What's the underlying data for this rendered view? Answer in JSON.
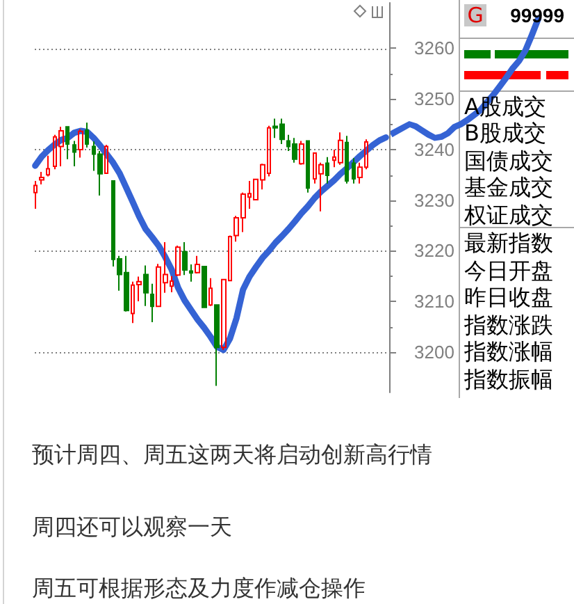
{
  "chart_data": [
    {
      "type": "candlestick",
      "categories": [
        null,
        null,
        null,
        null,
        null,
        null,
        null,
        null,
        null,
        null,
        null,
        null,
        null,
        null,
        null,
        null,
        null,
        null,
        null,
        null,
        null,
        null,
        null,
        null,
        null,
        null,
        null,
        null,
        null,
        null,
        null,
        null,
        null,
        null,
        null,
        null,
        null,
        null,
        null,
        null,
        null,
        null,
        null,
        null,
        null,
        null,
        null,
        null,
        null,
        null,
        null,
        null,
        null,
        null,
        null
      ],
      "ohlc": [
        [
          3231.5,
          3233.8,
          3228.3,
          3232.9
        ],
        [
          3234.0,
          3235.6,
          3233.1,
          3234.5
        ],
        [
          3235.0,
          3238.8,
          3234.7,
          3236.2
        ],
        [
          3236.7,
          3242.9,
          3236.1,
          3242.5
        ],
        [
          3240.6,
          3244.5,
          3236.7,
          3243.7
        ],
        [
          3244.5,
          3244.5,
          3238.1,
          3241.1
        ],
        [
          3240.9,
          3241.7,
          3236.7,
          3239.5
        ],
        [
          3240.0,
          3244.0,
          3238.4,
          3243.6
        ],
        [
          3243.8,
          3245.3,
          3240.4,
          3241.1
        ],
        [
          3240.6,
          3241.6,
          3235.8,
          3239.1
        ],
        [
          3239.1,
          3239.7,
          3230.9,
          3235.2
        ],
        [
          3235.3,
          3240.9,
          3235.2,
          3240.6
        ],
        [
          3233.8,
          3233.8,
          3216.9,
          3218.3
        ],
        [
          3218.4,
          3219.0,
          3212.1,
          3215.3
        ],
        [
          3215.7,
          3219.0,
          3208.0,
          3208.2
        ],
        [
          3207.6,
          3213.9,
          3205.7,
          3213.2
        ],
        [
          3213.3,
          3214.9,
          3210.0,
          3213.9
        ],
        [
          3215.3,
          3217.1,
          3209.1,
          3211.7
        ],
        [
          3211.4,
          3213.5,
          3205.9,
          3209.0
        ],
        [
          3209.0,
          3217.4,
          3209.0,
          3216.8
        ],
        [
          3213.7,
          3221.7,
          3211.7,
          3215.3
        ],
        [
          3213.0,
          3215.0,
          3211.8,
          3214.0
        ],
        [
          3215.2,
          3221.0,
          3215.0,
          3220.7
        ],
        [
          3219.8,
          3221.7,
          3215.2,
          3216.2
        ],
        [
          3216.0,
          3217.3,
          3213.9,
          3215.6
        ],
        [
          3215.7,
          3219.0,
          3215.5,
          3217.3
        ],
        [
          3216.9,
          3216.9,
          3208.7,
          3208.8
        ],
        [
          3209.3,
          3214.6,
          3209.1,
          3212.6
        ],
        [
          3209.3,
          3209.3,
          3193.3,
          3200.9
        ],
        [
          3200.9,
          3214.3,
          3200.4,
          3214.3
        ],
        [
          3214.1,
          3223.0,
          3214.1,
          3222.8
        ],
        [
          3223.0,
          3226.9,
          3221.8,
          3226.5
        ],
        [
          3226.5,
          3231.5,
          3223.7,
          3231.2
        ],
        [
          3230.6,
          3233.8,
          3228.3,
          3231.3
        ],
        [
          3230.1,
          3234.2,
          3230.1,
          3234.1
        ],
        [
          3234.0,
          3237.2,
          3232.1,
          3237.0
        ],
        [
          3235.3,
          3244.7,
          3234.7,
          3244.3
        ],
        [
          3244.6,
          3246.1,
          3242.3,
          3244.3
        ],
        [
          3245.0,
          3246.1,
          3241.1,
          3242.0
        ],
        [
          3241.7,
          3242.9,
          3239.7,
          3240.6
        ],
        [
          3241.1,
          3242.3,
          3237.4,
          3238.1
        ],
        [
          3237.2,
          3241.7,
          3237.0,
          3241.1
        ],
        [
          3241.7,
          3241.7,
          3231.5,
          3232.4
        ],
        [
          3234.2,
          3239.4,
          3233.3,
          3239.3
        ],
        [
          3235.2,
          3237.4,
          3227.8,
          3237.0
        ],
        [
          3237.3,
          3238.5,
          3233.3,
          3234.9
        ],
        [
          3237.9,
          3240.0,
          3236.5,
          3238.5
        ],
        [
          3237.4,
          3243.4,
          3237.0,
          3241.8
        ],
        [
          3241.4,
          3242.7,
          3233.3,
          3233.8
        ],
        [
          3237.3,
          3238.3,
          3233.3,
          3234.2
        ],
        [
          3234.5,
          3237.4,
          3233.3,
          3236.5
        ],
        [
          3236.5,
          3242.0,
          3236.1,
          3241.5
        ],
        null,
        null,
        null
      ],
      "colors": [
        "#ff0000",
        "#ff0000",
        "#ff0000",
        "#ff0000",
        "#ff0000",
        "#008000",
        "#008000",
        "#ff0000",
        "#008000",
        "#008000",
        "#008000",
        "#ff0000",
        "#008000",
        "#008000",
        "#008000",
        "#ff0000",
        "#ff0000",
        "#008000",
        "#008000",
        "#ff0000",
        "#ff0000",
        "#ff0000",
        "#ff0000",
        "#008000",
        "#008000",
        "#ff0000",
        "#008000",
        "#ff0000",
        "#008000",
        "#ff0000",
        "#ff0000",
        "#ff0000",
        "#ff0000",
        "#ff0000",
        "#ff0000",
        "#ff0000",
        "#ff0000",
        "#008000",
        "#008000",
        "#008000",
        "#008000",
        "#ff0000",
        "#008000",
        "#ff0000",
        "#ff0000",
        "#008000",
        "#ff0000",
        "#ff0000",
        "#008000",
        "#008000",
        "#ff0000",
        "#ff0000",
        null,
        null,
        null
      ],
      "series": [
        {
          "type": "line",
          "color": "#3563d4",
          "values": [
            3236.8,
            3238.6,
            3239.9,
            3241.0,
            3241.9,
            3242.3,
            3243.3,
            3243.7,
            3243.5,
            3242.3,
            3240.8,
            3239.1,
            3237.4,
            3235.3,
            3232.5,
            3229.7,
            3226.8,
            3224.3,
            3222.7,
            3221.0,
            3218.8,
            3216.3,
            3212.7,
            3210.2,
            3208.3,
            3206.4,
            3204.8,
            3203.0,
            3201.0,
            3200.4,
            3202.7,
            3206.7,
            3212.3,
            3214.9,
            3216.8,
            3218.6,
            3220.0,
            3221.6,
            3222.9,
            3224.3,
            3225.8,
            3227.4,
            3228.8,
            3230.4,
            3231.7,
            3232.8,
            3233.9,
            3235.2,
            3236.3,
            3237.5,
            3238.7,
            3239.8,
            3240.9,
            3241.8,
            3242.4
          ]
        }
      ],
      "ylim": [
        3192,
        3269
      ],
      "yticks": [
        3200,
        {
          "value": 3205,
          "label": null
        },
        3210,
        {
          "value": 3215,
          "label": null
        },
        3220,
        {
          "value": 3225,
          "label": null
        },
        3230,
        {
          "value": 3235,
          "label": null
        },
        3240,
        {
          "value": 3245,
          "label": null
        },
        3250,
        {
          "value": 3255,
          "label": null
        },
        3260
      ],
      "grid": "y",
      "tick_labels": "y",
      "annotations": [
        "预计周四、周五这两天将启动创新高行情",
        "周四还可以观察一天",
        "周五可根据形态及力度作减仓操作"
      ]
    },
    {
      "type": "other",
      "annotations": [
        "G",
        "99999",
        "A股成交",
        "B股成交",
        "国债成交",
        "基金成交",
        "权证成交",
        "最新指数",
        "今日开盘",
        "昨日收盘",
        "指数涨跌",
        "指数涨幅",
        "指数振幅"
      ]
    }
  ]
}
